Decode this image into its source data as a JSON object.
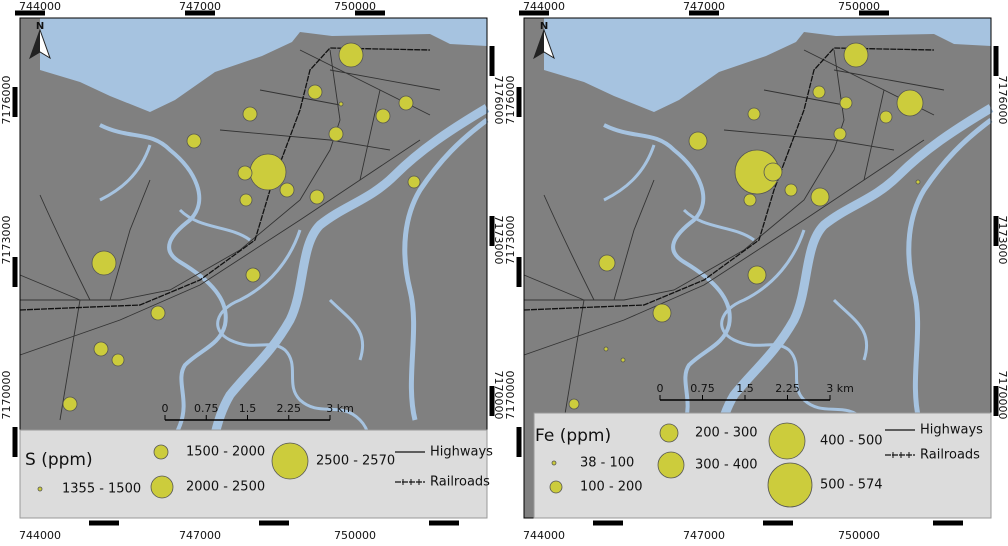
{
  "panels": [
    {
      "top_labels": [
        "744000",
        "747000",
        "750000"
      ],
      "bottom_labels": [
        "744000",
        "747000",
        "750000"
      ],
      "left_labels": [
        "7176000",
        "7173000",
        "7170000"
      ],
      "right_labels": [
        "7176000",
        "7173000",
        "7170000"
      ],
      "north": "N",
      "scale": [
        "0",
        "0.75",
        "1.5",
        "2.25",
        "3 km"
      ],
      "legend": {
        "title": "S (ppm)",
        "classes": [
          "1355 - 1500",
          "1500 - 2000",
          "2000 - 2500",
          "2500 - 2570"
        ],
        "lines": [
          "Highways",
          "Railroads"
        ]
      }
    },
    {
      "top_labels": [
        "744000",
        "747000",
        "750000"
      ],
      "bottom_labels": [
        "744000",
        "747000",
        "750000"
      ],
      "left_labels": [
        "7176000",
        "7173000",
        "7170000"
      ],
      "right_labels": [
        "7176000",
        "7173000",
        "7170000"
      ],
      "north": "N",
      "scale": [
        "0",
        "0.75",
        "1.5",
        "2.25",
        "3 km"
      ],
      "legend": {
        "title": "Fe (ppm)",
        "classes": [
          "38 - 100",
          "100 - 200",
          "200 - 300",
          "300 - 400",
          "400 - 500",
          "500 - 574"
        ],
        "lines": [
          "Highways",
          "Railroads"
        ]
      }
    }
  ]
}
